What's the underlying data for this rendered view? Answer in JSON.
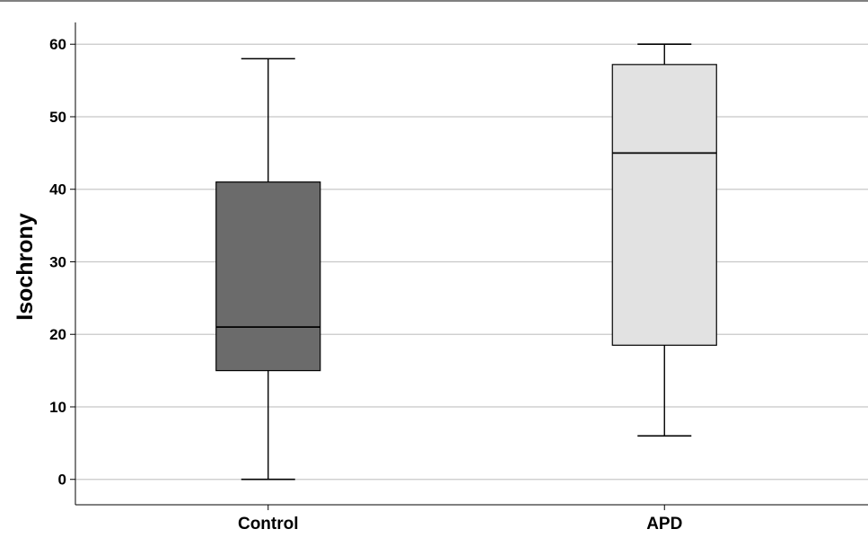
{
  "chart_data": {
    "type": "boxplot",
    "title": "",
    "xlabel": "",
    "ylabel": "Isochrony",
    "ylim": [
      -3.5,
      63
    ],
    "yticks": [
      0,
      10,
      20,
      30,
      40,
      50,
      60
    ],
    "grid": true,
    "legend": "none",
    "categories": [
      "Control",
      "APD"
    ],
    "boxes": [
      {
        "category": "Control",
        "min": 0,
        "q1": 15,
        "median": 21,
        "q3": 41,
        "max": 58,
        "color": "#6b6b6b"
      },
      {
        "category": "APD",
        "min": 6,
        "q1": 18.5,
        "median": 45,
        "q3": 57.2,
        "max": 60,
        "color": "#e2e2e2"
      }
    ]
  }
}
